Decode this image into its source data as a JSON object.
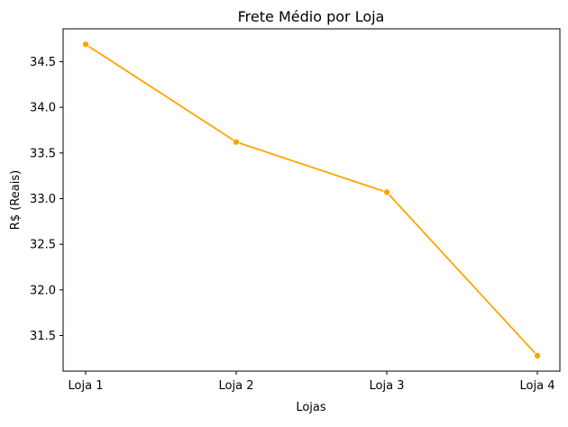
{
  "chart_data": {
    "type": "line",
    "title": "Frete Médio por Loja",
    "xlabel": "Lojas",
    "ylabel": "R$ (Reais)",
    "categories": [
      "Loja 1",
      "Loja 2",
      "Loja 3",
      "Loja 4"
    ],
    "series": [
      {
        "name": "Frete Médio",
        "values": [
          34.69,
          33.62,
          33.07,
          31.28
        ],
        "color": "#ffa500",
        "marker": "circle"
      }
    ],
    "yticks": [
      "31.5",
      "32.0",
      "32.5",
      "33.0",
      "33.5",
      "34.0",
      "34.5"
    ],
    "ylim": [
      31.11,
      34.86
    ],
    "grid": false,
    "legend": "none"
  }
}
